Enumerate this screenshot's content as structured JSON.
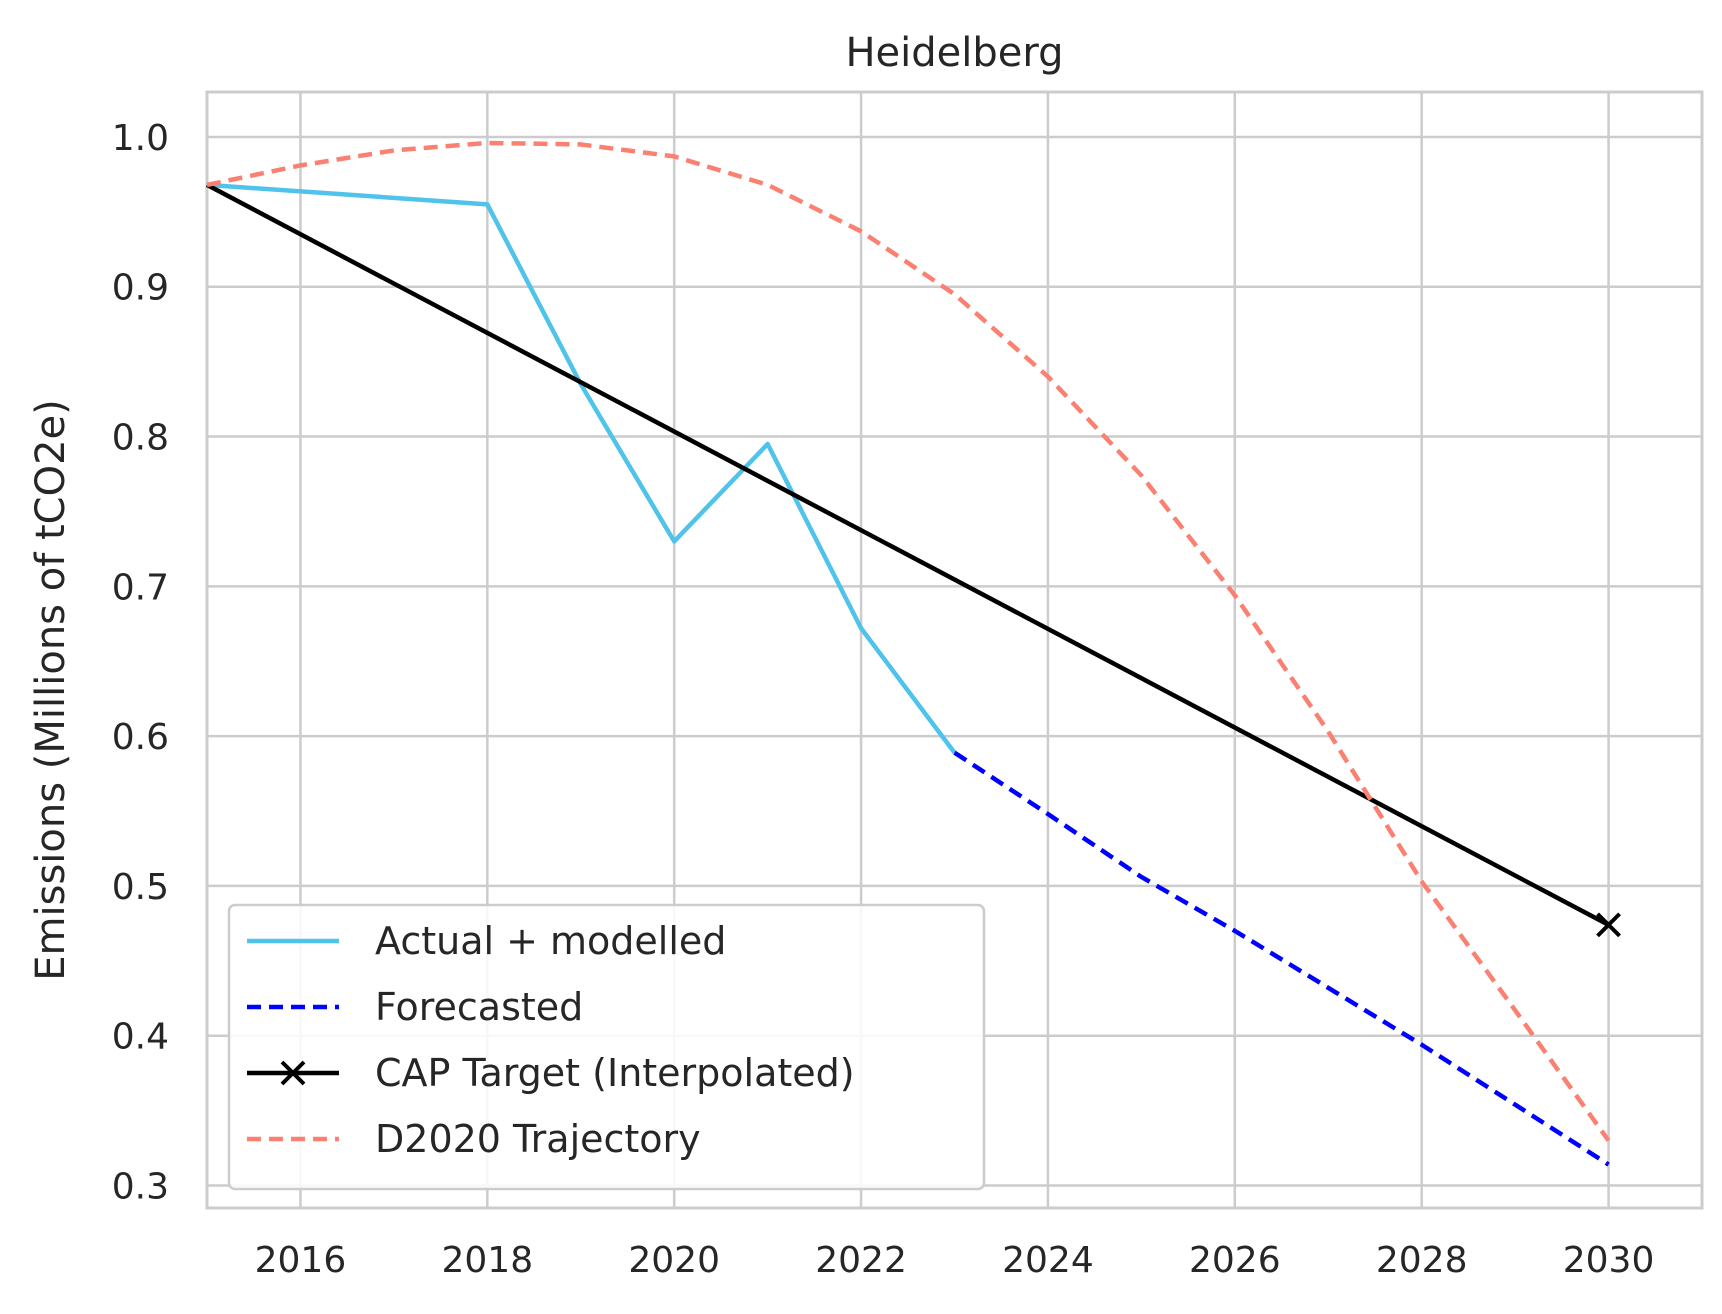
{
  "chart_data": {
    "type": "line",
    "title": "Heidelberg",
    "xlabel": "",
    "ylabel": "Emissions (Millions of tCO2e)",
    "xlim": [
      2015,
      2031
    ],
    "ylim": [
      0.285,
      1.03
    ],
    "xticks": [
      2016,
      2018,
      2020,
      2022,
      2024,
      2026,
      2028,
      2030
    ],
    "xtick_labels": [
      "2016",
      "2018",
      "2020",
      "2022",
      "2024",
      "2026",
      "2028",
      "2030"
    ],
    "yticks": [
      0.3,
      0.4,
      0.5,
      0.6,
      0.7,
      0.8,
      0.9,
      1.0
    ],
    "ytick_labels": [
      "0.3",
      "0.4",
      "0.5",
      "0.6",
      "0.7",
      "0.8",
      "0.9",
      "1.0"
    ],
    "grid": true,
    "legend_position": "bottom-left",
    "series": [
      {
        "name": "Actual + modelled",
        "color": "#4fc3ea",
        "style": "solid",
        "marker": "none",
        "x": [
          2015,
          2018,
          2019,
          2020,
          2021,
          2022,
          2023
        ],
        "y": [
          0.968,
          0.955,
          0.835,
          0.73,
          0.795,
          0.672,
          0.589
        ]
      },
      {
        "name": "Forecasted",
        "color": "#0000ff",
        "style": "dashed",
        "marker": "none",
        "x": [
          2023,
          2024,
          2025,
          2026,
          2027,
          2028,
          2029,
          2030
        ],
        "y": [
          0.589,
          0.548,
          0.506,
          0.47,
          0.432,
          0.394,
          0.354,
          0.314
        ]
      },
      {
        "name": "CAP Target (Interpolated)",
        "color": "#000000",
        "style": "solid",
        "marker": "x",
        "marker_x": [
          2030
        ],
        "marker_y": [
          0.474
        ],
        "x": [
          2015,
          2030
        ],
        "y": [
          0.968,
          0.474
        ]
      },
      {
        "name": "D2020 Trajectory",
        "color": "#fa8072",
        "style": "dashed",
        "marker": "none",
        "x": [
          2015,
          2016,
          2017,
          2018,
          2019,
          2020,
          2021,
          2022,
          2023,
          2024,
          2025,
          2026,
          2027,
          2028,
          2029,
          2030
        ],
        "y": [
          0.968,
          0.981,
          0.991,
          0.996,
          0.995,
          0.987,
          0.968,
          0.937,
          0.895,
          0.84,
          0.774,
          0.694,
          0.603,
          0.503,
          0.417,
          0.33
        ]
      }
    ]
  }
}
